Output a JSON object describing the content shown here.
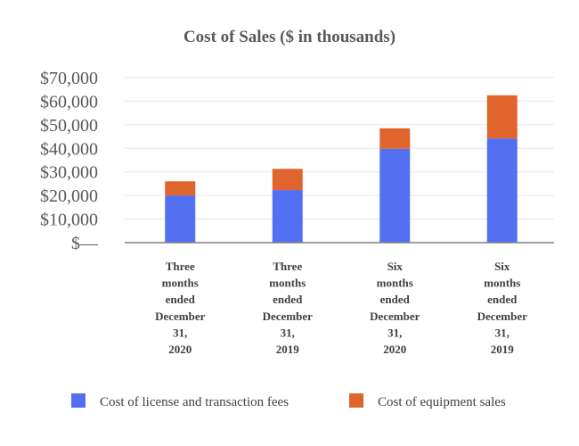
{
  "chart_data": {
    "type": "bar",
    "stacked": true,
    "title": "Cost of Sales ($ in thousands)",
    "xlabel": "",
    "ylabel": "",
    "ylim": [
      0,
      70000
    ],
    "yticks": [
      0,
      10000,
      20000,
      30000,
      40000,
      50000,
      60000,
      70000
    ],
    "ytick_labels": [
      "$—",
      "$10,000",
      "$20,000",
      "$30,000",
      "$40,000",
      "$50,000",
      "$60,000",
      "$70,000"
    ],
    "grid": true,
    "legend_position": "bottom",
    "categories": [
      [
        "Three",
        "months",
        "ended",
        "December",
        "31,",
        "2020"
      ],
      [
        "Three",
        "months",
        "ended",
        "December",
        "31,",
        "2019"
      ],
      [
        "Six",
        "months",
        "ended",
        "December",
        "31,",
        "2020"
      ],
      [
        "Six",
        "months",
        "ended",
        "December",
        "31,",
        "2019"
      ]
    ],
    "series": [
      {
        "name": "Cost of license and transaction fees",
        "color": "#5470f2",
        "values": [
          20000,
          22300,
          39800,
          44200
        ]
      },
      {
        "name": "Cost of equipment sales",
        "color": "#e0652c",
        "values": [
          6000,
          9000,
          8700,
          18300
        ]
      }
    ]
  }
}
